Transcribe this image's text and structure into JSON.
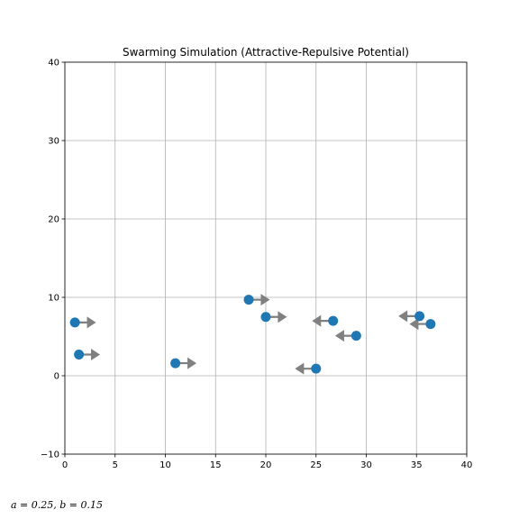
{
  "chart_data": {
    "type": "scatter",
    "title": "Swarming Simulation (Attractive-Repulsive Potential)",
    "xlabel": "",
    "ylabel": "",
    "xlim": [
      0,
      40
    ],
    "ylim": [
      -10,
      40
    ],
    "xticks": [
      0,
      5,
      10,
      15,
      20,
      25,
      30,
      35,
      40
    ],
    "yticks": [
      -10,
      0,
      10,
      20,
      30,
      40
    ],
    "grid": true,
    "point_color": "#1f77b4",
    "arrow_color": "#808080",
    "points": [
      {
        "x": 1.0,
        "y": 6.8,
        "dx": 2.1,
        "dy": 0.0
      },
      {
        "x": 1.4,
        "y": 2.7,
        "dx": 2.1,
        "dy": 0.0
      },
      {
        "x": 11.0,
        "y": 1.6,
        "dx": 2.1,
        "dy": 0.0
      },
      {
        "x": 18.3,
        "y": 9.7,
        "dx": 2.1,
        "dy": 0.0
      },
      {
        "x": 20.0,
        "y": 7.5,
        "dx": 2.1,
        "dy": 0.0
      },
      {
        "x": 25.0,
        "y": 0.9,
        "dx": -2.1,
        "dy": 0.0
      },
      {
        "x": 26.7,
        "y": 7.0,
        "dx": -2.1,
        "dy": 0.0
      },
      {
        "x": 29.0,
        "y": 5.1,
        "dx": -2.1,
        "dy": 0.0
      },
      {
        "x": 35.3,
        "y": 7.6,
        "dx": -2.1,
        "dy": 0.0
      },
      {
        "x": 36.4,
        "y": 6.6,
        "dx": -2.1,
        "dy": 0.0
      }
    ]
  },
  "params_text": "a = 0.25, b = 0.15"
}
